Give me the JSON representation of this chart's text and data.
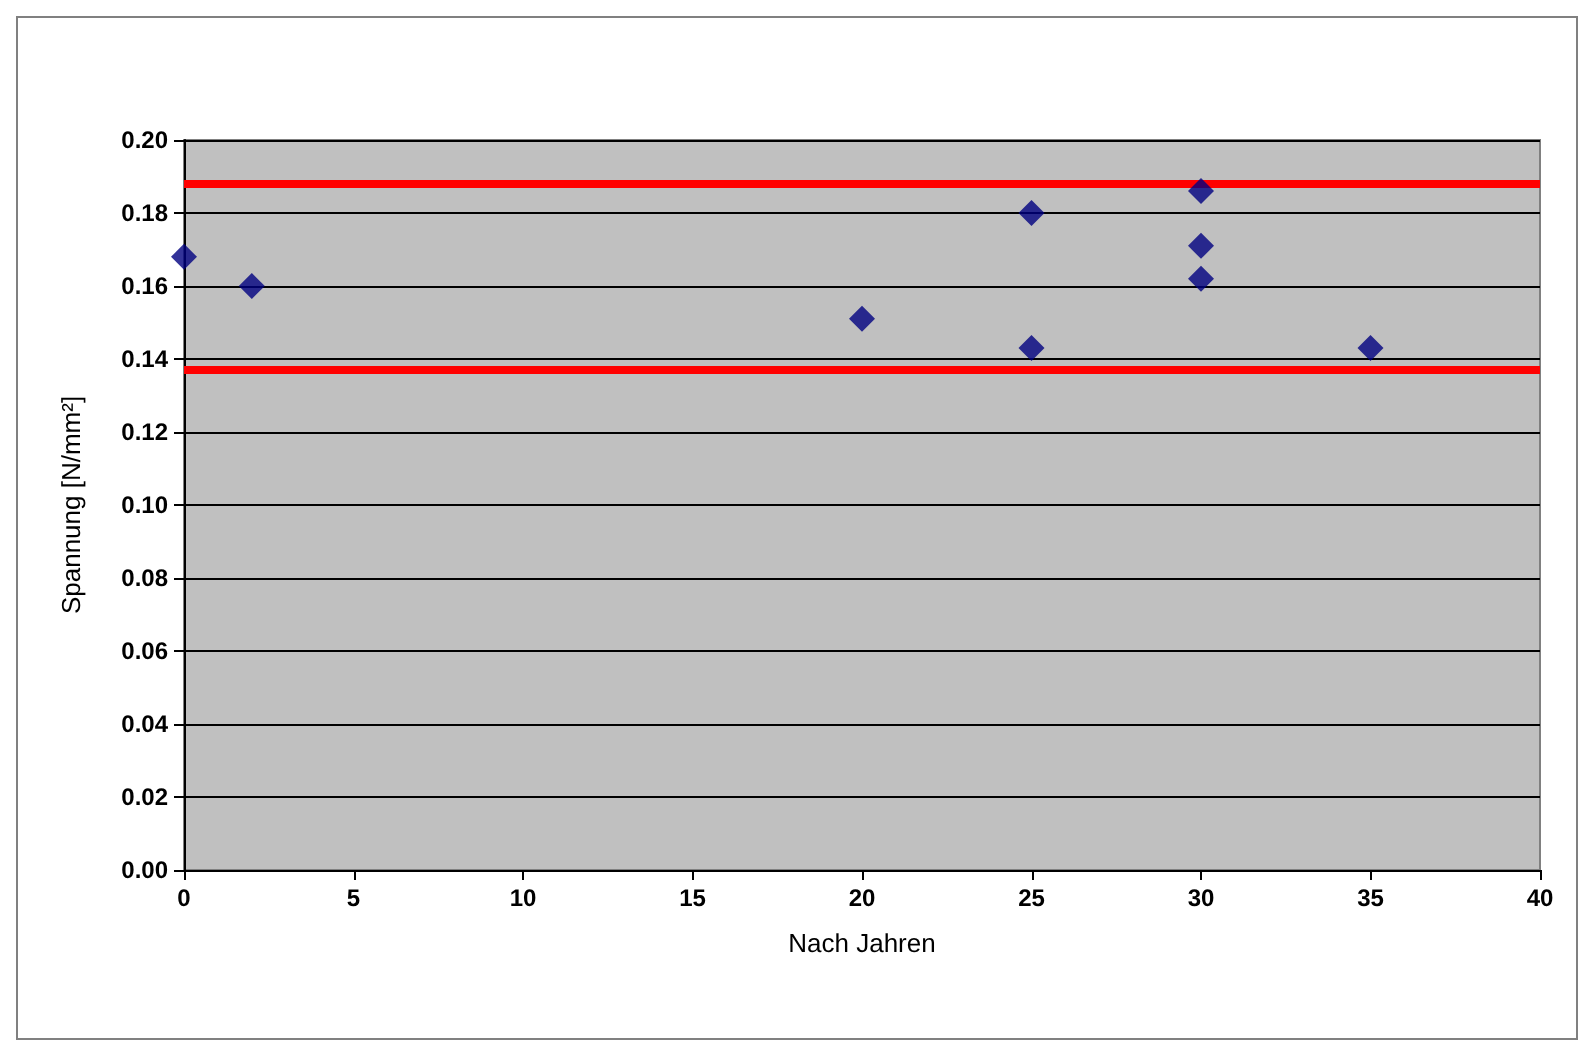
{
  "chart_data": {
    "type": "scatter",
    "xlabel": "Nach Jahren",
    "ylabel": "Spannung [N/mm²]",
    "x": [
      0,
      2,
      20,
      25,
      25,
      30,
      30,
      30,
      35
    ],
    "series": [
      {
        "color": "#000080",
        "values": [
          0.168,
          0.16,
          0.151,
          0.18,
          0.143,
          0.186,
          0.171,
          0.162,
          0.143
        ]
      }
    ],
    "xlim": [
      0,
      40
    ],
    "xticks": [
      0,
      5,
      10,
      15,
      20,
      25,
      30,
      35,
      40
    ],
    "ylim": [
      0,
      0.2
    ],
    "yticks": [
      {
        "value": 0,
        "label": "0.00"
      },
      {
        "value": 0.02,
        "label": "0.02"
      },
      {
        "value": 0.04,
        "label": "0.04"
      },
      {
        "value": 0.06,
        "label": "0.06"
      },
      {
        "value": 0.08,
        "label": "0.08"
      },
      {
        "value": 0.1,
        "label": "0.10"
      },
      {
        "value": 0.12,
        "label": "0.12"
      },
      {
        "value": 0.14,
        "label": "0.14"
      },
      {
        "value": 0.16,
        "label": "0.16"
      },
      {
        "value": 0.18,
        "label": "0.18"
      },
      {
        "value": 0.2,
        "label": "0.20"
      }
    ],
    "ref_lines": [
      {
        "axis": "y",
        "value": 0.188,
        "color": "#ff0000"
      },
      {
        "axis": "y",
        "value": 0.137,
        "color": "#ff0000"
      }
    ],
    "grid": "y",
    "marker": "diamond"
  }
}
